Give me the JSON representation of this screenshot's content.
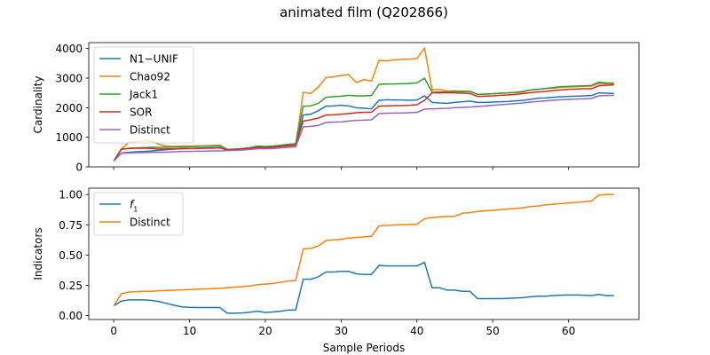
{
  "figure_title": "animated film (Q202866)",
  "chart_data": [
    {
      "type": "line",
      "title": "",
      "xlabel": "",
      "ylabel": "Cardinality",
      "xlim": [
        -3.3,
        69.3
      ],
      "ylim": [
        0,
        4200
      ],
      "x_ticks": [
        0,
        10,
        20,
        30,
        40,
        50,
        60
      ],
      "x_tick_labels_visible": false,
      "y_ticks": [
        0,
        1000,
        2000,
        3000,
        4000
      ],
      "y_tick_labels": [
        "0",
        "1000",
        "2000",
        "3000",
        "4000"
      ],
      "grid": false,
      "legend_position": "upper-left",
      "series": [
        {
          "name": "N1−UNIF",
          "color": "#1f77b4",
          "values": [
            200,
            470,
            490,
            510,
            520,
            540,
            560,
            580,
            600,
            620,
            620,
            630,
            640,
            640,
            650,
            560,
            570,
            580,
            620,
            650,
            640,
            660,
            680,
            700,
            720,
            1750,
            1780,
            1900,
            2050,
            2060,
            2080,
            2060,
            2000,
            1980,
            1960,
            2250,
            2270,
            2260,
            2260,
            2250,
            2260,
            2400,
            2180,
            2160,
            2150,
            2180,
            2200,
            2220,
            2180,
            2180,
            2190,
            2200,
            2210,
            2230,
            2250,
            2280,
            2320,
            2330,
            2350,
            2370,
            2380,
            2390,
            2400,
            2410,
            2500,
            2490,
            2480
          ]
        },
        {
          "name": "Chao92",
          "color": "#ff7f0e",
          "values": [
            200,
            600,
            830,
            860,
            880,
            870,
            760,
            700,
            690,
            700,
            700,
            710,
            710,
            720,
            730,
            580,
            600,
            620,
            640,
            660,
            650,
            670,
            690,
            700,
            720,
            2520,
            2480,
            2700,
            3020,
            3040,
            3090,
            3120,
            2850,
            2950,
            2900,
            3600,
            3580,
            3620,
            3630,
            3640,
            3660,
            4020,
            2600,
            2620,
            2560,
            2570,
            2560,
            2550,
            2450,
            2460,
            2470,
            2490,
            2500,
            2510,
            2530,
            2600,
            2620,
            2650,
            2660,
            2690,
            2700,
            2710,
            2720,
            2730,
            2820,
            2810,
            2800
          ]
        },
        {
          "name": "Jack1",
          "color": "#2ca02c",
          "values": [
            200,
            590,
            630,
            640,
            650,
            660,
            660,
            670,
            670,
            670,
            680,
            690,
            700,
            700,
            710,
            590,
            600,
            620,
            650,
            700,
            690,
            700,
            730,
            760,
            780,
            2050,
            2060,
            2150,
            2350,
            2370,
            2390,
            2420,
            2400,
            2400,
            2410,
            2790,
            2800,
            2800,
            2810,
            2820,
            2840,
            3000,
            2520,
            2530,
            2530,
            2550,
            2540,
            2550,
            2450,
            2460,
            2470,
            2490,
            2500,
            2520,
            2550,
            2600,
            2620,
            2650,
            2680,
            2710,
            2720,
            2730,
            2740,
            2750,
            2860,
            2840,
            2830
          ]
        },
        {
          "name": "SOR",
          "color": "#d62728",
          "values": [
            200,
            600,
            620,
            630,
            630,
            620,
            600,
            610,
            610,
            610,
            620,
            620,
            630,
            630,
            640,
            580,
            590,
            610,
            630,
            660,
            650,
            670,
            700,
            720,
            740,
            1550,
            1590,
            1650,
            1750,
            1760,
            1780,
            1800,
            1830,
            1840,
            1850,
            2050,
            2060,
            2070,
            2070,
            2080,
            2100,
            2250,
            2500,
            2500,
            2510,
            2500,
            2490,
            2480,
            2380,
            2390,
            2400,
            2420,
            2430,
            2450,
            2480,
            2510,
            2530,
            2550,
            2580,
            2600,
            2620,
            2630,
            2640,
            2640,
            2740,
            2760,
            2770
          ]
        },
        {
          "name": "Distinct",
          "color": "#9467bd",
          "values": [
            200,
            460,
            470,
            480,
            480,
            490,
            490,
            500,
            510,
            520,
            520,
            530,
            530,
            540,
            540,
            550,
            560,
            570,
            590,
            610,
            610,
            620,
            640,
            660,
            680,
            1350,
            1370,
            1400,
            1500,
            1510,
            1520,
            1550,
            1570,
            1580,
            1590,
            1800,
            1810,
            1820,
            1820,
            1830,
            1840,
            1950,
            1960,
            1970,
            1980,
            2000,
            2010,
            2020,
            2040,
            2060,
            2080,
            2100,
            2120,
            2140,
            2160,
            2190,
            2210,
            2230,
            2250,
            2270,
            2280,
            2290,
            2300,
            2310,
            2400,
            2410,
            2420
          ]
        }
      ]
    },
    {
      "type": "line",
      "title": "",
      "xlabel": "Sample Periods",
      "ylabel": "Indicators",
      "xlim": [
        -3.3,
        69.3
      ],
      "ylim": [
        -0.0325,
        1.0525
      ],
      "x_ticks": [
        0,
        10,
        20,
        30,
        40,
        50,
        60
      ],
      "x_tick_labels": [
        "0",
        "10",
        "20",
        "30",
        "40",
        "50",
        "60"
      ],
      "y_ticks": [
        0,
        0.25,
        0.5,
        0.75,
        1.0
      ],
      "y_tick_labels": [
        "0.00",
        "0.25",
        "0.50",
        "0.75",
        "1.00"
      ],
      "grid": false,
      "legend_position": "upper-left",
      "series": [
        {
          "name": "f1",
          "name_base": "f",
          "name_sub": "1",
          "color": "#1f77b4",
          "values": [
            0.08,
            0.12,
            0.13,
            0.13,
            0.13,
            0.125,
            0.115,
            0.1,
            0.085,
            0.072,
            0.068,
            0.066,
            0.066,
            0.066,
            0.066,
            0.02,
            0.02,
            0.022,
            0.028,
            0.035,
            0.025,
            0.03,
            0.035,
            0.045,
            0.045,
            0.3,
            0.3,
            0.32,
            0.36,
            0.36,
            0.365,
            0.365,
            0.345,
            0.34,
            0.34,
            0.415,
            0.41,
            0.41,
            0.41,
            0.41,
            0.41,
            0.44,
            0.23,
            0.23,
            0.21,
            0.21,
            0.2,
            0.2,
            0.14,
            0.14,
            0.14,
            0.14,
            0.142,
            0.145,
            0.148,
            0.155,
            0.16,
            0.16,
            0.165,
            0.168,
            0.17,
            0.17,
            0.168,
            0.165,
            0.175,
            0.165,
            0.165
          ]
        },
        {
          "name": "Distinct",
          "color": "#ff7f0e",
          "values": [
            0.08,
            0.18,
            0.195,
            0.198,
            0.2,
            0.2,
            0.205,
            0.208,
            0.21,
            0.212,
            0.215,
            0.218,
            0.22,
            0.222,
            0.225,
            0.23,
            0.235,
            0.24,
            0.245,
            0.255,
            0.26,
            0.265,
            0.275,
            0.285,
            0.29,
            0.55,
            0.555,
            0.575,
            0.62,
            0.625,
            0.63,
            0.64,
            0.645,
            0.65,
            0.655,
            0.74,
            0.745,
            0.748,
            0.75,
            0.752,
            0.755,
            0.8,
            0.81,
            0.815,
            0.818,
            0.82,
            0.845,
            0.85,
            0.86,
            0.865,
            0.87,
            0.875,
            0.88,
            0.885,
            0.89,
            0.9,
            0.905,
            0.915,
            0.92,
            0.925,
            0.93,
            0.935,
            0.94,
            0.945,
            0.995,
            1.0,
            1.0
          ]
        }
      ]
    }
  ]
}
